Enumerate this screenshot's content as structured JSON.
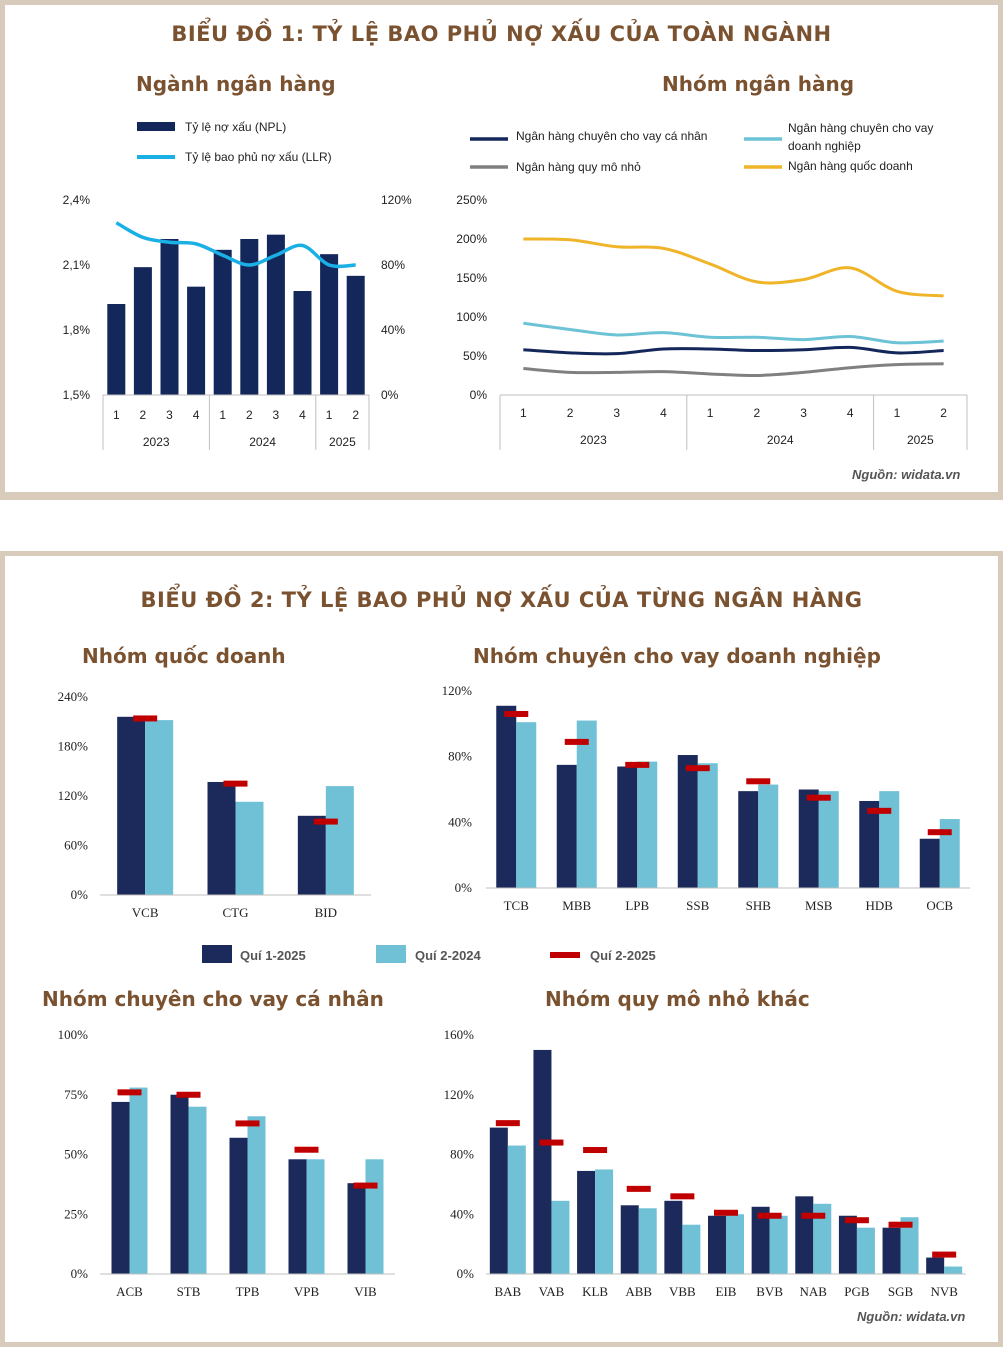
{
  "chart1": {
    "title": "BIỂU ĐỒ 1: TỶ LỆ BAO PHỦ NỢ XẤU CỦA TOÀN NGÀNH",
    "source": "Nguồn: widata.vn",
    "colors": {
      "npl": "#14275a",
      "llr": "#1ab0e6",
      "personal": "#14275a",
      "corporate": "#6cc3d6",
      "small": "#808080",
      "state": "#f0b429"
    },
    "charts": {
      "industry": {
        "subtitle": "Ngành ngân hàng",
        "legend": {
          "npl": "Tỷ lệ nợ xấu (NPL)",
          "llr": "Tỷ lệ bao phủ nợ xấu (LLR)"
        },
        "left_ticks": [
          "1,5%",
          "1,8%",
          "2,1%",
          "2,4%"
        ],
        "right_ticks": [
          "0%",
          "40%",
          "80%",
          "120%"
        ]
      },
      "groups": {
        "subtitle": "Nhóm ngân hàng",
        "legend": {
          "personal": "Ngân hàng chuyên cho vay cá nhân",
          "corporate_1": "Ngân hàng chuyên cho vay",
          "corporate_2": "doanh nghiệp",
          "small": "Ngân hàng quy mô nhỏ",
          "state": "Ngân hàng quốc doanh"
        },
        "ticks": [
          "0%",
          "50%",
          "100%",
          "150%",
          "200%",
          "250%"
        ]
      }
    }
  },
  "chart2": {
    "title": "BIỂU ĐỒ 2: TỶ LỆ BAO PHỦ NỢ XẤU CỦA TỪNG NGÂN HÀNG",
    "source": "Nguồn: widata.vn",
    "legend": {
      "q1_2025": "Quí 1-2025",
      "q2_2024": "Quí 2-2024",
      "q2_2025": "Quí 2-2025"
    },
    "colors": {
      "q1_2025": "#1b2a5a",
      "q2_2024": "#70c1d6",
      "q2_2025": "#c00000"
    },
    "subtitles": {
      "state": "Nhóm quốc doanh",
      "corporate": "Nhóm chuyên cho vay doanh nghiệp",
      "personal": "Nhóm chuyên cho vay cá nhân",
      "small": "Nhóm quy mô nhỏ khác"
    }
  },
  "chart_data": [
    {
      "type": "bar",
      "title": "Ngành ngân hàng",
      "x_groups": [
        {
          "label": "2023",
          "quarters": [
            "1",
            "2",
            "3",
            "4"
          ]
        },
        {
          "label": "2024",
          "quarters": [
            "1",
            "2",
            "3",
            "4"
          ]
        },
        {
          "label": "2025",
          "quarters": [
            "1",
            "2"
          ]
        }
      ],
      "categories": [
        "1",
        "2",
        "3",
        "4",
        "1",
        "2",
        "3",
        "4",
        "1",
        "2"
      ],
      "series": [
        {
          "name": "Tỷ lệ nợ xấu (NPL)",
          "type": "bar",
          "axis": "left",
          "values": [
            1.92,
            2.09,
            2.22,
            2.0,
            2.17,
            2.22,
            2.24,
            1.98,
            2.15,
            2.05
          ]
        },
        {
          "name": "Tỷ lệ bao phủ nợ xấu (LLR)",
          "type": "line",
          "axis": "right",
          "values": [
            106,
            97,
            94,
            93,
            86,
            80,
            86,
            92,
            80,
            80
          ]
        }
      ],
      "ylim_left": [
        1.5,
        2.4
      ],
      "ylim_right": [
        0,
        120
      ]
    },
    {
      "type": "line",
      "title": "Nhóm ngân hàng",
      "x_groups": [
        {
          "label": "2023",
          "quarters": [
            "1",
            "2",
            "3",
            "4"
          ]
        },
        {
          "label": "2024",
          "quarters": [
            "1",
            "2",
            "3",
            "4"
          ]
        },
        {
          "label": "2025",
          "quarters": [
            "1",
            "2"
          ]
        }
      ],
      "categories": [
        "1",
        "2",
        "3",
        "4",
        "1",
        "2",
        "3",
        "4",
        "1",
        "2"
      ],
      "series": [
        {
          "name": "Ngân hàng chuyên cho vay cá nhân",
          "values": [
            58,
            54,
            53,
            59,
            59,
            57,
            58,
            61,
            54,
            57
          ]
        },
        {
          "name": "Ngân hàng chuyên cho vay doanh nghiệp",
          "values": [
            92,
            84,
            77,
            80,
            74,
            74,
            71,
            75,
            67,
            69
          ]
        },
        {
          "name": "Ngân hàng quy mô nhỏ",
          "values": [
            34,
            29,
            29,
            30,
            27,
            25,
            29,
            35,
            39,
            40
          ]
        },
        {
          "name": "Ngân hàng quốc doanh",
          "values": [
            200,
            199,
            190,
            188,
            168,
            145,
            148,
            163,
            133,
            127
          ]
        }
      ],
      "ylim": [
        0,
        250
      ]
    },
    {
      "type": "bar",
      "title": "Nhóm quốc doanh",
      "categories": [
        "VCB",
        "CTG",
        "BID"
      ],
      "series": [
        {
          "name": "Quí 1-2025",
          "values": [
            216,
            137,
            96
          ]
        },
        {
          "name": "Quí 2-2024",
          "values": [
            212,
            113,
            132
          ]
        },
        {
          "name": "Quí 2-2025",
          "marker": true,
          "values": [
            214,
            135,
            89
          ]
        }
      ],
      "ylim": [
        0,
        240
      ],
      "ticks": [
        "0%",
        "60%",
        "120%",
        "180%",
        "240%"
      ]
    },
    {
      "type": "bar",
      "title": "Nhóm chuyên cho vay doanh nghiệp",
      "categories": [
        "TCB",
        "MBB",
        "LPB",
        "SSB",
        "SHB",
        "MSB",
        "HDB",
        "OCB"
      ],
      "series": [
        {
          "name": "Quí 1-2025",
          "values": [
            111,
            75,
            74,
            81,
            59,
            60,
            53,
            30
          ]
        },
        {
          "name": "Quí 2-2024",
          "values": [
            101,
            102,
            77,
            76,
            63,
            59,
            59,
            42
          ]
        },
        {
          "name": "Quí 2-2025",
          "marker": true,
          "values": [
            106,
            89,
            75,
            73,
            65,
            55,
            47,
            34
          ]
        }
      ],
      "ylim": [
        0,
        120
      ],
      "ticks": [
        "0%",
        "40%",
        "80%",
        "120%"
      ]
    },
    {
      "type": "bar",
      "title": "Nhóm chuyên cho vay cá nhân",
      "categories": [
        "ACB",
        "STB",
        "TPB",
        "VPB",
        "VIB"
      ],
      "series": [
        {
          "name": "Quí 1-2025",
          "values": [
            72,
            75,
            57,
            48,
            38
          ]
        },
        {
          "name": "Quí 2-2024",
          "values": [
            78,
            70,
            66,
            48,
            48
          ]
        },
        {
          "name": "Quí 2-2025",
          "marker": true,
          "values": [
            76,
            75,
            63,
            52,
            37
          ]
        }
      ],
      "ylim": [
        0,
        100
      ],
      "ticks": [
        "0%",
        "25%",
        "50%",
        "75%",
        "100%"
      ]
    },
    {
      "type": "bar",
      "title": "Nhóm quy mô nhỏ khác",
      "categories": [
        "BAB",
        "VAB",
        "KLB",
        "ABB",
        "VBB",
        "EIB",
        "BVB",
        "NAB",
        "PGB",
        "SGB",
        "NVB"
      ],
      "series": [
        {
          "name": "Quí 1-2025",
          "values": [
            98,
            150,
            69,
            46,
            49,
            39,
            45,
            52,
            39,
            31,
            11
          ]
        },
        {
          "name": "Quí 2-2024",
          "values": [
            86,
            49,
            70,
            44,
            33,
            40,
            39,
            47,
            31,
            38,
            5
          ]
        },
        {
          "name": "Quí 2-2025",
          "marker": true,
          "values": [
            101,
            88,
            83,
            57,
            52,
            41,
            39,
            39,
            36,
            33,
            13
          ]
        }
      ],
      "ylim": [
        0,
        160
      ],
      "ticks": [
        "0%",
        "40%",
        "80%",
        "120%",
        "160%"
      ]
    }
  ]
}
